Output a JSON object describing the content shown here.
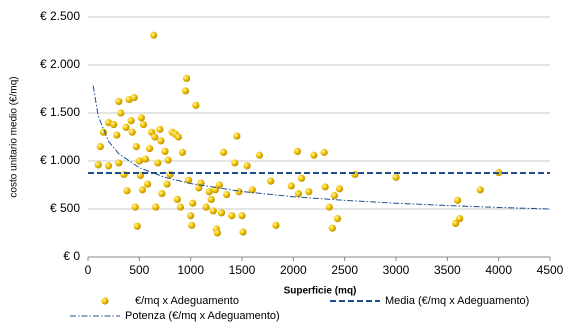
{
  "chart_data": {
    "type": "scatter",
    "x_label": "Superficie (mq)",
    "y_label": "costo unitario medio (€/mq)",
    "xlim": [
      0,
      4500
    ],
    "xticks": [
      0,
      500,
      1000,
      1500,
      2000,
      2500,
      3000,
      3500,
      4000,
      4500
    ],
    "ylim": [
      0,
      2500
    ],
    "yticks": [
      {
        "value": 0,
        "label": "€ 0"
      },
      {
        "value": 500,
        "label": "€ 500"
      },
      {
        "value": 1000,
        "label": "€ 1.000"
      },
      {
        "value": 1500,
        "label": "€ 1.500"
      },
      {
        "value": 2000,
        "label": "€ 2.000"
      },
      {
        "value": 2500,
        "label": "€ 2.500"
      }
    ],
    "grid": true,
    "legend": "bottom",
    "series": [
      {
        "name": "€/mq x Adeguamento",
        "type": "scatter",
        "color": "#f2c200",
        "x": [
          100,
          120,
          150,
          200,
          200,
          250,
          280,
          300,
          300,
          320,
          350,
          370,
          380,
          400,
          420,
          430,
          450,
          460,
          470,
          480,
          500,
          510,
          520,
          530,
          540,
          560,
          580,
          600,
          620,
          640,
          650,
          660,
          680,
          700,
          710,
          720,
          750,
          770,
          780,
          800,
          820,
          850,
          870,
          880,
          900,
          920,
          950,
          960,
          980,
          1000,
          1010,
          1020,
          1050,
          1080,
          1100,
          1150,
          1180,
          1200,
          1220,
          1240,
          1250,
          1260,
          1280,
          1300,
          1320,
          1350,
          1400,
          1430,
          1450,
          1470,
          1500,
          1510,
          1550,
          1600,
          1670,
          1780,
          1830,
          1980,
          2040,
          2050,
          2080,
          2150,
          2200,
          2300,
          2310,
          2350,
          2380,
          2400,
          2430,
          2450,
          2600,
          3000,
          3580,
          3600,
          3620,
          3820,
          4000
        ],
        "values": [
          960,
          1150,
          1300,
          1400,
          950,
          1380,
          1270,
          1620,
          980,
          1500,
          860,
          1350,
          690,
          1640,
          1420,
          1300,
          1660,
          520,
          1150,
          320,
          1000,
          850,
          1450,
          700,
          1380,
          1020,
          760,
          1130,
          1300,
          2310,
          1250,
          520,
          980,
          1330,
          1210,
          660,
          1100,
          760,
          1010,
          860,
          1300,
          1280,
          600,
          1250,
          520,
          1090,
          1730,
          1860,
          800,
          430,
          330,
          560,
          1580,
          720,
          770,
          520,
          680,
          600,
          480,
          700,
          290,
          250,
          750,
          460,
          1090,
          650,
          430,
          980,
          1260,
          680,
          430,
          260,
          950,
          700,
          1060,
          790,
          330,
          740,
          1100,
          660,
          820,
          680,
          1060,
          1090,
          730,
          520,
          300,
          640,
          400,
          710,
          860,
          830,
          350,
          590,
          400,
          700,
          880
        ]
      },
      {
        "name": "Media (€/mq x Adeguamento)",
        "type": "line",
        "style": "dashed",
        "color": "#1f4e8c",
        "x": [
          0,
          4500
        ],
        "values": [
          875,
          875
        ]
      },
      {
        "name": "Potenza (€/mq x Adeguamento)",
        "type": "line",
        "style": "dashdot",
        "color": "#1f4e8c",
        "x": [
          50,
          100,
          200,
          300,
          500,
          750,
          1000,
          1500,
          2000,
          2500,
          3000,
          3500,
          4000,
          4500
        ],
        "values": [
          1785,
          1467,
          1205,
          1075,
          930,
          830,
          765,
          682,
          628,
          590,
          560,
          536,
          516,
          500
        ]
      }
    ]
  }
}
